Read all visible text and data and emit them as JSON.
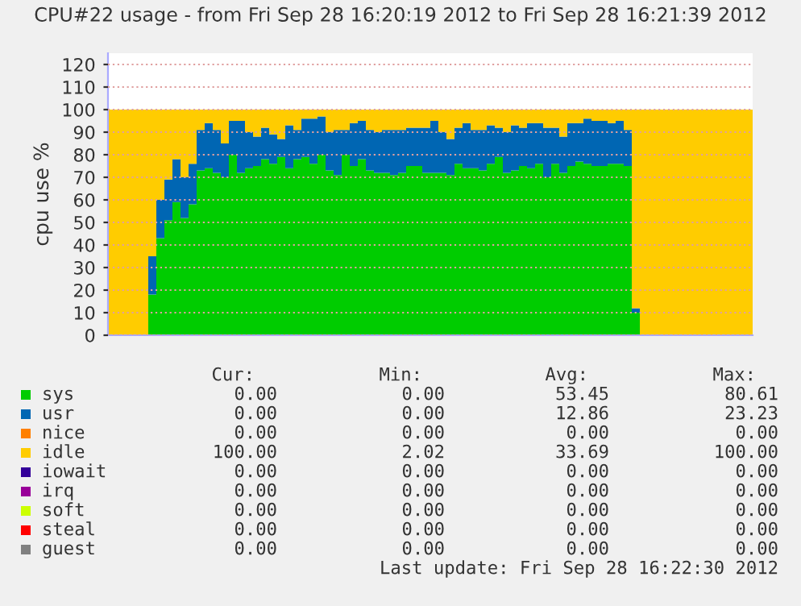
{
  "chart_data": {
    "type": "area",
    "stacked": true,
    "title": "CPU#22 usage - from Fri Sep 28 16:20:19 2012 to Fri Sep 28 16:21:39 2012",
    "ylabel": "cpu use %",
    "categories": [
      null,
      null,
      null,
      null,
      null,
      null,
      null,
      null,
      null,
      null,
      null,
      null,
      null,
      null,
      null,
      null,
      null,
      null,
      null,
      null,
      null,
      null,
      null,
      null,
      null,
      null,
      null,
      null,
      null,
      null,
      null,
      null,
      null,
      null,
      null,
      null,
      null,
      null,
      null,
      null,
      null,
      null,
      null,
      null,
      null,
      null,
      null,
      null,
      null,
      null,
      null,
      null,
      null,
      null,
      null,
      null,
      null,
      null,
      null,
      null,
      null,
      null,
      null,
      null,
      null,
      null,
      null,
      null,
      null,
      null,
      null,
      null,
      null,
      null,
      null,
      null,
      null,
      null,
      null,
      null
    ],
    "series": [
      {
        "name": "sys",
        "color": "#00cc00",
        "values": [
          0,
          0,
          0,
          0,
          0,
          18,
          43,
          51,
          59,
          52,
          58,
          73,
          74,
          72,
          70,
          80,
          72,
          74,
          75,
          78,
          76,
          79,
          74,
          78,
          79,
          76,
          80,
          73,
          71,
          80,
          75,
          78,
          73,
          72,
          72,
          71,
          72,
          75,
          75,
          72,
          72,
          72,
          71,
          76,
          74,
          74,
          73,
          76,
          79,
          72,
          73,
          75,
          74,
          76,
          70,
          76,
          72,
          75,
          77,
          76,
          75,
          75,
          76,
          76,
          75,
          10,
          0,
          0,
          0,
          0,
          0,
          0,
          0,
          0,
          0,
          0,
          0,
          0,
          0,
          0
        ]
      },
      {
        "name": "usr",
        "color": "#0066b3",
        "values": [
          0,
          0,
          0,
          0,
          0,
          17,
          17,
          18,
          19,
          18,
          18,
          18,
          20,
          19,
          15,
          15,
          23,
          16,
          13,
          14,
          13,
          8,
          19,
          13,
          17,
          20,
          17,
          17,
          20,
          11,
          19,
          17,
          18,
          18,
          19,
          20,
          19,
          17,
          17,
          20,
          23,
          18,
          16,
          16,
          20,
          17,
          18,
          17,
          13,
          18,
          20,
          17,
          20,
          18,
          22,
          16,
          16,
          19,
          17,
          20,
          20,
          20,
          18,
          19,
          16,
          2,
          0,
          0,
          0,
          0,
          0,
          0,
          0,
          0,
          0,
          0,
          0,
          0,
          0,
          0
        ]
      },
      {
        "name": "nice",
        "color": "#ff8000",
        "values": [
          null,
          null,
          null,
          null,
          null,
          null,
          null,
          null,
          null,
          null,
          null,
          null,
          null,
          null,
          null,
          null,
          null,
          null,
          null,
          null,
          null,
          null,
          null,
          null,
          null,
          null,
          null,
          null,
          null,
          null,
          null,
          null,
          null,
          null,
          null,
          null,
          null,
          null,
          null,
          null,
          null,
          null,
          null,
          null,
          null,
          null,
          null,
          null,
          null,
          null,
          null,
          null,
          null,
          null,
          null,
          null,
          null,
          null,
          null,
          null,
          null,
          null,
          null,
          null,
          null,
          null,
          null,
          null,
          null,
          null,
          null,
          null,
          null,
          null,
          null,
          null,
          null,
          null,
          null,
          null
        ]
      },
      {
        "name": "idle",
        "color": "#ffcc00",
        "values": [
          100,
          100,
          100,
          100,
          100,
          65,
          40,
          31,
          22,
          30,
          24,
          9,
          6,
          9,
          15,
          5,
          5,
          10,
          12,
          8,
          11,
          13,
          7,
          9,
          4,
          4,
          3,
          10,
          9,
          9,
          6,
          5,
          9,
          10,
          9,
          9,
          9,
          8,
          8,
          8,
          5,
          10,
          13,
          8,
          6,
          9,
          9,
          7,
          8,
          10,
          7,
          8,
          6,
          6,
          8,
          8,
          12,
          6,
          6,
          4,
          5,
          5,
          6,
          5,
          9,
          88,
          100,
          100,
          100,
          100,
          100,
          100,
          100,
          100,
          100,
          100,
          100,
          100,
          100,
          100
        ]
      },
      {
        "name": "iowait",
        "color": "#330099",
        "values": [
          null,
          null,
          null,
          null,
          null,
          null,
          null,
          null,
          null,
          null,
          null,
          null,
          null,
          null,
          null,
          null,
          null,
          null,
          null,
          null,
          null,
          null,
          null,
          null,
          null,
          null,
          null,
          null,
          null,
          null,
          null,
          null,
          null,
          null,
          null,
          null,
          null,
          null,
          null,
          null,
          null,
          null,
          null,
          null,
          null,
          null,
          null,
          null,
          null,
          null,
          null,
          null,
          null,
          null,
          null,
          null,
          null,
          null,
          null,
          null,
          null,
          null,
          null,
          null,
          null,
          null,
          null,
          null,
          null,
          null,
          null,
          null,
          null,
          null,
          null,
          null,
          null,
          null,
          null,
          null
        ]
      },
      {
        "name": "irq",
        "color": "#990099",
        "values": [
          null,
          null,
          null,
          null,
          null,
          null,
          null,
          null,
          null,
          null,
          null,
          null,
          null,
          null,
          null,
          null,
          null,
          null,
          null,
          null,
          null,
          null,
          null,
          null,
          null,
          null,
          null,
          null,
          null,
          null,
          null,
          null,
          null,
          null,
          null,
          null,
          null,
          null,
          null,
          null,
          null,
          null,
          null,
          null,
          null,
          null,
          null,
          null,
          null,
          null,
          null,
          null,
          null,
          null,
          null,
          null,
          null,
          null,
          null,
          null,
          null,
          null,
          null,
          null,
          null,
          null,
          null,
          null,
          null,
          null,
          null,
          null,
          null,
          null,
          null,
          null,
          null,
          null,
          null,
          null
        ]
      },
      {
        "name": "soft",
        "color": "#ccff00",
        "values": [
          null,
          null,
          null,
          null,
          null,
          null,
          null,
          null,
          null,
          null,
          null,
          null,
          null,
          null,
          null,
          null,
          null,
          null,
          null,
          null,
          null,
          null,
          null,
          null,
          null,
          null,
          null,
          null,
          null,
          null,
          null,
          null,
          null,
          null,
          null,
          null,
          null,
          null,
          null,
          null,
          null,
          null,
          null,
          null,
          null,
          null,
          null,
          null,
          null,
          null,
          null,
          null,
          null,
          null,
          null,
          null,
          null,
          null,
          null,
          null,
          null,
          null,
          null,
          null,
          null,
          null,
          null,
          null,
          null,
          null,
          null,
          null,
          null,
          null,
          null,
          null,
          null,
          null,
          null,
          null
        ]
      },
      {
        "name": "steal",
        "color": "#ff0000",
        "values": [
          null,
          null,
          null,
          null,
          null,
          null,
          null,
          null,
          null,
          null,
          null,
          null,
          null,
          null,
          null,
          null,
          null,
          null,
          null,
          null,
          null,
          null,
          null,
          null,
          null,
          null,
          null,
          null,
          null,
          null,
          null,
          null,
          null,
          null,
          null,
          null,
          null,
          null,
          null,
          null,
          null,
          null,
          null,
          null,
          null,
          null,
          null,
          null,
          null,
          null,
          null,
          null,
          null,
          null,
          null,
          null,
          null,
          null,
          null,
          null,
          null,
          null,
          null,
          null,
          null,
          null,
          null,
          null,
          null,
          null,
          null,
          null,
          null,
          null,
          null,
          null,
          null,
          null,
          null,
          null
        ]
      },
      {
        "name": "guest",
        "color": "#808080",
        "values": [
          null,
          null,
          null,
          null,
          null,
          null,
          null,
          null,
          null,
          null,
          null,
          null,
          null,
          null,
          null,
          null,
          null,
          null,
          null,
          null,
          null,
          null,
          null,
          null,
          null,
          null,
          null,
          null,
          null,
          null,
          null,
          null,
          null,
          null,
          null,
          null,
          null,
          null,
          null,
          null,
          null,
          null,
          null,
          null,
          null,
          null,
          null,
          null,
          null,
          null,
          null,
          null,
          null,
          null,
          null,
          null,
          null,
          null,
          null,
          null,
          null,
          null,
          null,
          null,
          null,
          null,
          null,
          null,
          null,
          null,
          null,
          null,
          null,
          null,
          null,
          null,
          null,
          null,
          null,
          null
        ]
      }
    ],
    "ylim": [
      0,
      125
    ],
    "yticks": [
      0,
      10,
      20,
      30,
      40,
      50,
      60,
      70,
      80,
      90,
      100,
      110,
      120
    ],
    "grid": "y",
    "legend": "bottom",
    "annotations": [
      "Cur:",
      "Min:",
      "Avg:",
      "Max:",
      "0.00",
      "0.00",
      "53.45",
      "80.61",
      "0.00",
      "0.00",
      "12.86",
      "23.23",
      "0.00",
      "0.00",
      "0.00",
      "0.00",
      "100.00",
      "2.02",
      "33.69",
      "100.00",
      "0.00",
      "0.00",
      "0.00",
      "0.00",
      "0.00",
      "0.00",
      "0.00",
      "0.00",
      "0.00",
      "0.00",
      "0.00",
      "0.00",
      "0.00",
      "0.00",
      "0.00",
      "0.00",
      "0.00",
      "0.00",
      "0.00",
      "0.00",
      "Last update: Fri Sep 28 16:22:30 2012"
    ]
  }
}
